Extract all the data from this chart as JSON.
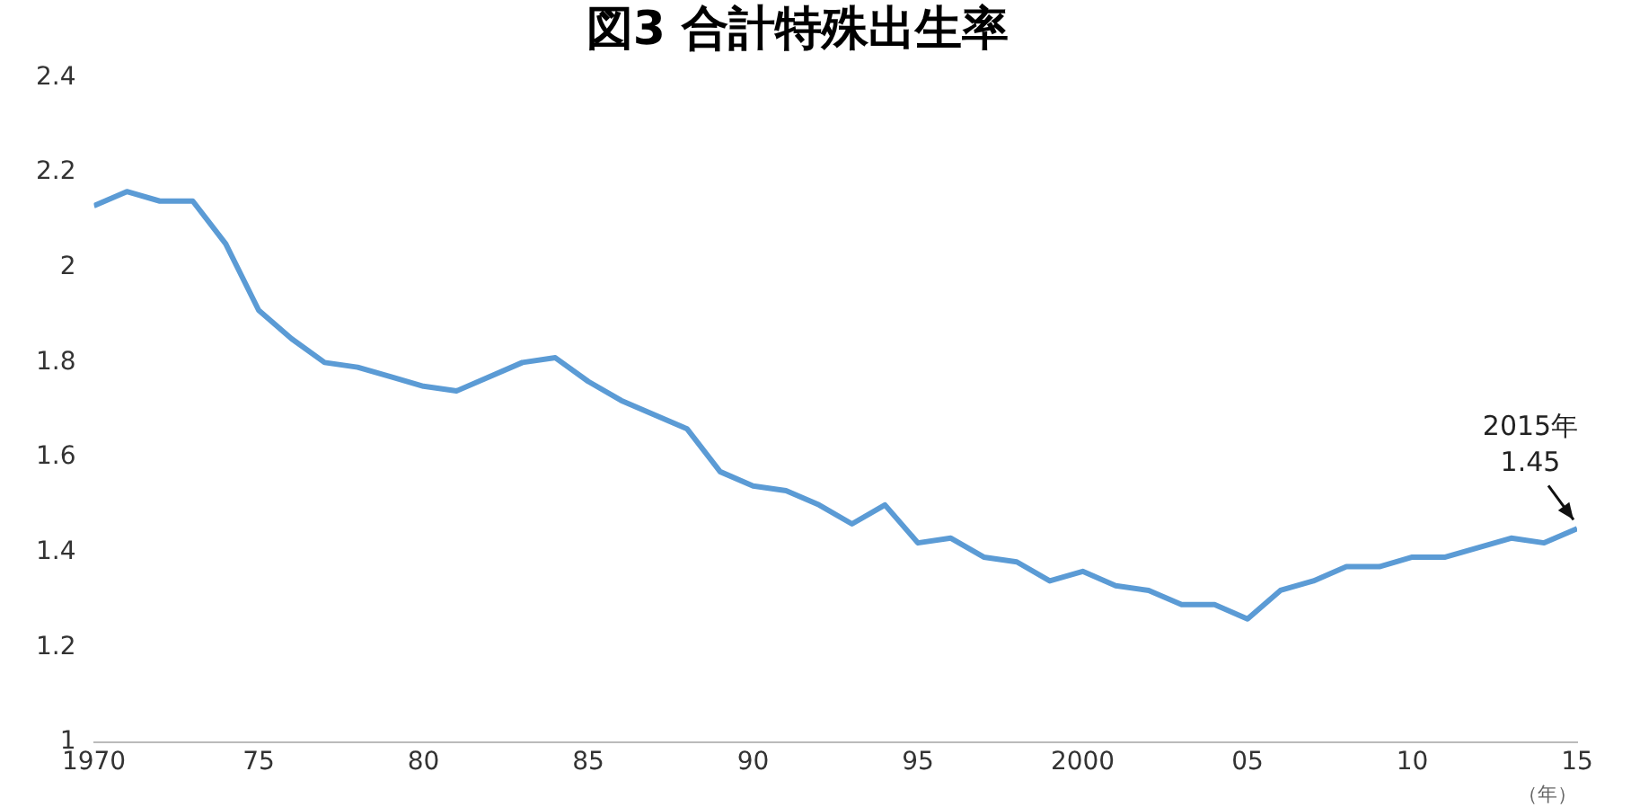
{
  "chart_data": {
    "type": "line",
    "title": "図3 合計特殊出生率",
    "xlabel": "（年）",
    "x": [
      1970,
      1971,
      1972,
      1973,
      1974,
      1975,
      1976,
      1977,
      1978,
      1979,
      1980,
      1981,
      1982,
      1983,
      1984,
      1985,
      1986,
      1987,
      1988,
      1989,
      1990,
      1991,
      1992,
      1993,
      1994,
      1995,
      1996,
      1997,
      1998,
      1999,
      2000,
      2001,
      2002,
      2003,
      2004,
      2005,
      2006,
      2007,
      2008,
      2009,
      2010,
      2011,
      2012,
      2013,
      2014,
      2015
    ],
    "series": [
      {
        "color": "#5b9bd5",
        "values": [
          2.13,
          2.16,
          2.14,
          2.14,
          2.05,
          1.91,
          1.85,
          1.8,
          1.79,
          1.77,
          1.75,
          1.74,
          1.77,
          1.8,
          1.81,
          1.76,
          1.72,
          1.69,
          1.66,
          1.57,
          1.54,
          1.53,
          1.5,
          1.46,
          1.5,
          1.42,
          1.43,
          1.39,
          1.38,
          1.34,
          1.36,
          1.33,
          1.32,
          1.29,
          1.29,
          1.26,
          1.32,
          1.34,
          1.37,
          1.37,
          1.39,
          1.39,
          1.41,
          1.43,
          1.42,
          1.45
        ]
      }
    ],
    "xlim": [
      1970,
      2015
    ],
    "xticks": [
      1970,
      {
        "value": 1975,
        "label": "75"
      },
      {
        "value": 1980,
        "label": "80"
      },
      {
        "value": 1985,
        "label": "85"
      },
      {
        "value": 1990,
        "label": "90"
      },
      {
        "value": 1995,
        "label": "95"
      },
      2000,
      {
        "value": 2005,
        "label": "05"
      },
      {
        "value": 2010,
        "label": "10"
      },
      {
        "value": 2015,
        "label": "15"
      }
    ],
    "ylim": [
      1,
      2.4
    ],
    "yticks": [
      1,
      1.2,
      1.4,
      1.6,
      1.8,
      2,
      2.2,
      2.4
    ],
    "annotations": [
      {
        "text": "2015年\n1.45",
        "x": 2015,
        "y": 1.45
      }
    ],
    "grid": false,
    "legend": false,
    "marker": "none",
    "line_style": "solid"
  }
}
